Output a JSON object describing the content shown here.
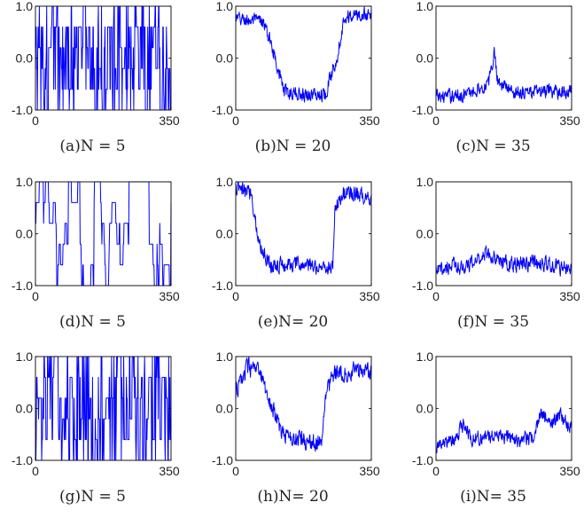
{
  "figure": {
    "line_color": "#0000ff",
    "axis_color": "#000000"
  },
  "chart_data": [
    {
      "type": "line",
      "caption": "(a)N = 5",
      "xlim": [
        0,
        350
      ],
      "ylim": [
        -1.0,
        1.0
      ],
      "xticks": [
        "0",
        "350"
      ],
      "yticks": [
        "-1.0",
        "0.0",
        "1.0"
      ],
      "n_points": 350,
      "levels": [
        -1.0,
        -0.6,
        -0.2,
        0.2,
        0.6,
        1.0
      ],
      "pattern": "discrete-rapid"
    },
    {
      "type": "line",
      "caption": "(b)N = 20",
      "xlim": [
        0,
        350
      ],
      "ylim": [
        -1.0,
        1.0
      ],
      "xticks": [
        "0",
        "350"
      ],
      "yticks": [
        "-1.0",
        "0.0",
        "1.0"
      ],
      "n_points": 350,
      "envelope": [
        [
          0,
          0.75
        ],
        [
          70,
          0.7
        ],
        [
          95,
          0.2
        ],
        [
          125,
          -0.65
        ],
        [
          175,
          -0.7
        ],
        [
          230,
          -0.7
        ],
        [
          260,
          0.0
        ],
        [
          280,
          0.8
        ],
        [
          350,
          0.85
        ]
      ],
      "noise": 0.12,
      "pattern": "noisy-envelope"
    },
    {
      "type": "line",
      "caption": "(c)N = 35",
      "xlim": [
        0,
        350
      ],
      "ylim": [
        -1.0,
        1.0
      ],
      "xticks": [
        "0",
        "350"
      ],
      "yticks": [
        "-1.0",
        "0.0",
        "1.0"
      ],
      "n_points": 350,
      "envelope": [
        [
          0,
          -0.75
        ],
        [
          80,
          -0.7
        ],
        [
          135,
          -0.5
        ],
        [
          150,
          0.1
        ],
        [
          160,
          -0.45
        ],
        [
          200,
          -0.65
        ],
        [
          350,
          -0.65
        ]
      ],
      "noise": 0.12,
      "pattern": "noisy-envelope"
    },
    {
      "type": "line",
      "caption": "(d)N = 5",
      "xlim": [
        0,
        350
      ],
      "ylim": [
        -1.0,
        1.0
      ],
      "xticks": [
        "0",
        "350"
      ],
      "yticks": [
        "-1.0",
        "0.0",
        "1.0"
      ],
      "n_points": 350,
      "levels": [
        -1.0,
        -0.6,
        -0.2,
        0.2,
        0.6,
        1.0
      ],
      "pattern": "discrete-slow"
    },
    {
      "type": "line",
      "caption": "(e)N= 20",
      "xlim": [
        0,
        350
      ],
      "ylim": [
        -1.0,
        1.0
      ],
      "xticks": [
        "0",
        "350"
      ],
      "yticks": [
        "-1.0",
        "0.0",
        "1.0"
      ],
      "n_points": 350,
      "envelope": [
        [
          0,
          0.85
        ],
        [
          40,
          0.8
        ],
        [
          60,
          -0.2
        ],
        [
          90,
          -0.6
        ],
        [
          160,
          -0.6
        ],
        [
          250,
          -0.65
        ],
        [
          255,
          0.5
        ],
        [
          280,
          0.8
        ],
        [
          350,
          0.7
        ]
      ],
      "noise": 0.14,
      "pattern": "noisy-envelope"
    },
    {
      "type": "line",
      "caption": "(f)N = 35",
      "xlim": [
        0,
        350
      ],
      "ylim": [
        -1.0,
        1.0
      ],
      "xticks": [
        "0",
        "350"
      ],
      "yticks": [
        "-1.0",
        "0.0",
        "1.0"
      ],
      "n_points": 350,
      "envelope": [
        [
          0,
          -0.75
        ],
        [
          40,
          -0.6
        ],
        [
          80,
          -0.65
        ],
        [
          130,
          -0.35
        ],
        [
          160,
          -0.5
        ],
        [
          190,
          -0.6
        ],
        [
          250,
          -0.55
        ],
        [
          290,
          -0.6
        ],
        [
          350,
          -0.7
        ]
      ],
      "noise": 0.13,
      "pattern": "noisy-envelope"
    },
    {
      "type": "line",
      "caption": "(g)N = 5",
      "xlim": [
        0,
        350
      ],
      "ylim": [
        -1.0,
        1.0
      ],
      "xticks": [
        "0",
        "350"
      ],
      "yticks": [
        "-1.0",
        "0.0",
        "1.0"
      ],
      "n_points": 350,
      "levels": [
        -1.0,
        -0.6,
        -0.2,
        0.2,
        0.6,
        1.0
      ],
      "pattern": "discrete-rapid"
    },
    {
      "type": "line",
      "caption": "(h)N= 20",
      "xlim": [
        0,
        350
      ],
      "ylim": [
        -1.0,
        1.0
      ],
      "xticks": [
        "0",
        "350"
      ],
      "yticks": [
        "-1.0",
        "0.0",
        "1.0"
      ],
      "n_points": 350,
      "envelope": [
        [
          0,
          0.3
        ],
        [
          30,
          0.8
        ],
        [
          60,
          0.7
        ],
        [
          90,
          0.1
        ],
        [
          120,
          -0.5
        ],
        [
          170,
          -0.6
        ],
        [
          220,
          -0.7
        ],
        [
          235,
          0.4
        ],
        [
          260,
          0.7
        ],
        [
          350,
          0.75
        ]
      ],
      "noise": 0.15,
      "pattern": "noisy-envelope"
    },
    {
      "type": "line",
      "caption": "(i)N= 35",
      "xlim": [
        0,
        350
      ],
      "ylim": [
        -1.0,
        1.0
      ],
      "xticks": [
        "0",
        "350"
      ],
      "yticks": [
        "-1.0",
        "0.0",
        "1.0"
      ],
      "n_points": 350,
      "envelope": [
        [
          0,
          -0.75
        ],
        [
          50,
          -0.6
        ],
        [
          70,
          -0.3
        ],
        [
          90,
          -0.6
        ],
        [
          150,
          -0.5
        ],
        [
          210,
          -0.6
        ],
        [
          250,
          -0.55
        ],
        [
          270,
          -0.1
        ],
        [
          300,
          -0.3
        ],
        [
          320,
          -0.1
        ],
        [
          350,
          -0.4
        ]
      ],
      "noise": 0.12,
      "pattern": "noisy-envelope"
    }
  ]
}
